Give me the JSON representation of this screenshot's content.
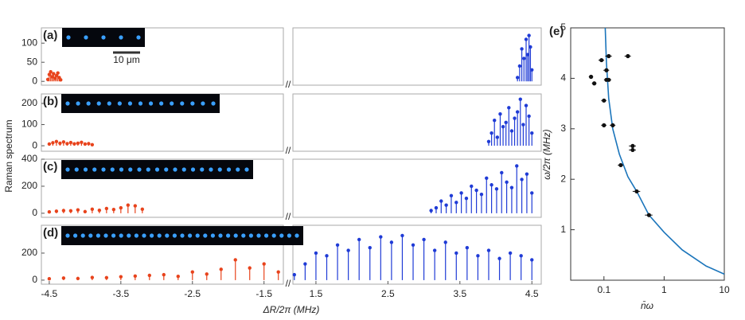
{
  "chart_data": [
    {
      "type": "stem",
      "label": "(a)",
      "scale_bar": "10 μm",
      "xlim": [
        -4.61,
        -1.23
      ],
      "x2lim": [
        1.18,
        4.63
      ],
      "ylim": [
        -10,
        140
      ],
      "yticks": [
        0,
        50,
        100
      ],
      "series": [
        {
          "color": "#e8431c",
          "x": [
            -4.52,
            -4.5,
            -4.48,
            -4.46,
            -4.44,
            -4.42,
            -4.4,
            -4.38,
            -4.36,
            -4.34
          ],
          "values": [
            5,
            18,
            25,
            12,
            20,
            8,
            15,
            22,
            10,
            4
          ]
        },
        {
          "color": "#1f3bd6",
          "axis": "x2",
          "x": [
            4.3,
            4.33,
            4.36,
            4.39,
            4.42,
            4.44,
            4.46,
            4.48,
            4.5
          ],
          "values": [
            10,
            40,
            85,
            60,
            110,
            70,
            120,
            90,
            30
          ]
        }
      ]
    },
    {
      "type": "stem",
      "label": "(b)",
      "xlim": [
        -4.61,
        -1.23
      ],
      "x2lim": [
        1.18,
        4.63
      ],
      "ylim": [
        -26,
        245
      ],
      "yticks": [
        0,
        100,
        200
      ],
      "series": [
        {
          "color": "#e8431c",
          "x": [
            -4.5,
            -4.45,
            -4.4,
            -4.35,
            -4.3,
            -4.25,
            -4.2,
            -4.15,
            -4.1,
            -4.05,
            -4.0,
            -3.95,
            -3.9
          ],
          "values": [
            8,
            14,
            20,
            12,
            18,
            10,
            15,
            9,
            12,
            16,
            8,
            10,
            5
          ]
        },
        {
          "color": "#1f3bd6",
          "axis": "x2",
          "x": [
            3.9,
            3.94,
            3.98,
            4.02,
            4.06,
            4.1,
            4.14,
            4.18,
            4.22,
            4.26,
            4.3,
            4.34,
            4.38,
            4.42,
            4.46,
            4.5
          ],
          "values": [
            20,
            60,
            120,
            40,
            150,
            90,
            110,
            180,
            70,
            130,
            160,
            220,
            100,
            190,
            140,
            60
          ]
        }
      ]
    },
    {
      "type": "stem",
      "label": "(c)",
      "ylabel": "Raman spectrum",
      "xlim": [
        -4.61,
        -1.23
      ],
      "x2lim": [
        1.18,
        4.63
      ],
      "ylim": [
        -30,
        400
      ],
      "yticks": [
        0,
        200,
        400
      ],
      "series": [
        {
          "color": "#e8431c",
          "x": [
            -4.5,
            -4.4,
            -4.3,
            -4.2,
            -4.1,
            -4.0,
            -3.9,
            -3.8,
            -3.7,
            -3.6,
            -3.5,
            -3.4,
            -3.3,
            -3.2
          ],
          "values": [
            10,
            15,
            20,
            18,
            25,
            12,
            30,
            22,
            35,
            28,
            40,
            60,
            55,
            30
          ]
        },
        {
          "color": "#1f3bd6",
          "axis": "x2",
          "x": [
            3.1,
            3.17,
            3.24,
            3.31,
            3.38,
            3.45,
            3.52,
            3.59,
            3.66,
            3.73,
            3.8,
            3.87,
            3.94,
            4.01,
            4.08,
            4.15,
            4.22,
            4.29,
            4.36,
            4.43,
            4.5
          ],
          "values": [
            20,
            40,
            90,
            60,
            130,
            80,
            150,
            110,
            200,
            170,
            140,
            260,
            210,
            180,
            300,
            230,
            190,
            350,
            250,
            290,
            150
          ]
        }
      ]
    },
    {
      "type": "stem",
      "label": "(d)",
      "xlabel": "ΔR/2π (MHz)",
      "xlim": [
        -4.61,
        -1.23
      ],
      "x2lim": [
        1.18,
        4.63
      ],
      "ylim": [
        -30,
        406
      ],
      "yticks": [
        0,
        200
      ],
      "xticks": [
        -4.5,
        -3.5,
        -2.5,
        -1.5
      ],
      "x2ticks": [
        1.5,
        2.5,
        3.5,
        4.5
      ],
      "series": [
        {
          "color": "#e8431c",
          "x": [
            -4.5,
            -4.3,
            -4.1,
            -3.9,
            -3.7,
            -3.5,
            -3.3,
            -3.1,
            -2.9,
            -2.7,
            -2.5,
            -2.3,
            -2.1,
            -1.9,
            -1.7,
            -1.5,
            -1.3
          ],
          "values": [
            10,
            15,
            12,
            20,
            18,
            25,
            30,
            35,
            40,
            28,
            60,
            45,
            80,
            150,
            90,
            120,
            60
          ]
        },
        {
          "color": "#1f3bd6",
          "axis": "x2",
          "x": [
            1.2,
            1.35,
            1.5,
            1.65,
            1.8,
            1.95,
            2.1,
            2.25,
            2.4,
            2.55,
            2.7,
            2.85,
            3.0,
            3.15,
            3.3,
            3.45,
            3.6,
            3.75,
            3.9,
            4.05,
            4.2,
            4.35,
            4.5
          ],
          "values": [
            40,
            120,
            200,
            180,
            260,
            220,
            300,
            240,
            320,
            280,
            330,
            260,
            300,
            220,
            280,
            200,
            240,
            180,
            220,
            160,
            200,
            180,
            150
          ]
        }
      ]
    },
    {
      "type": "scatter",
      "label": "(e)",
      "xlabel": "n̄ω",
      "ylabel": "ω/2π (MHz)",
      "xscale": "log",
      "xlim": [
        0.028,
        10
      ],
      "ylim": [
        0,
        5
      ],
      "xticks": [
        0.1,
        1,
        10
      ],
      "yticks": [
        1,
        2,
        3,
        4,
        5
      ],
      "x": [
        0.061,
        0.069,
        0.091,
        0.11,
        0.12,
        0.11,
        0.12,
        0.1,
        0.1,
        0.14,
        0.25,
        0.3,
        0.3,
        0.19,
        0.35,
        0.56
      ],
      "values": [
        4.03,
        3.9,
        4.36,
        4.16,
        4.44,
        3.97,
        3.97,
        3.56,
        3.07,
        3.07,
        4.44,
        2.66,
        2.58,
        2.28,
        1.76,
        1.29
      ],
      "xerr": [
        0.005,
        0.006,
        0.01,
        0.012,
        0.015,
        0.01,
        0.012,
        0.01,
        0.01,
        0.015,
        0.03,
        0.04,
        0.04,
        0.02,
        0.05,
        0.08
      ],
      "color": "#111111",
      "curve": {
        "color": "#1b75bb",
        "x": [
          0.105,
          0.11,
          0.12,
          0.14,
          0.18,
          0.25,
          0.35,
          0.56,
          1,
          2,
          5,
          10
        ],
        "values": [
          5,
          4.3,
          3.6,
          3.0,
          2.5,
          2.05,
          1.76,
          1.29,
          0.95,
          0.6,
          0.28,
          0.12
        ]
      }
    }
  ]
}
